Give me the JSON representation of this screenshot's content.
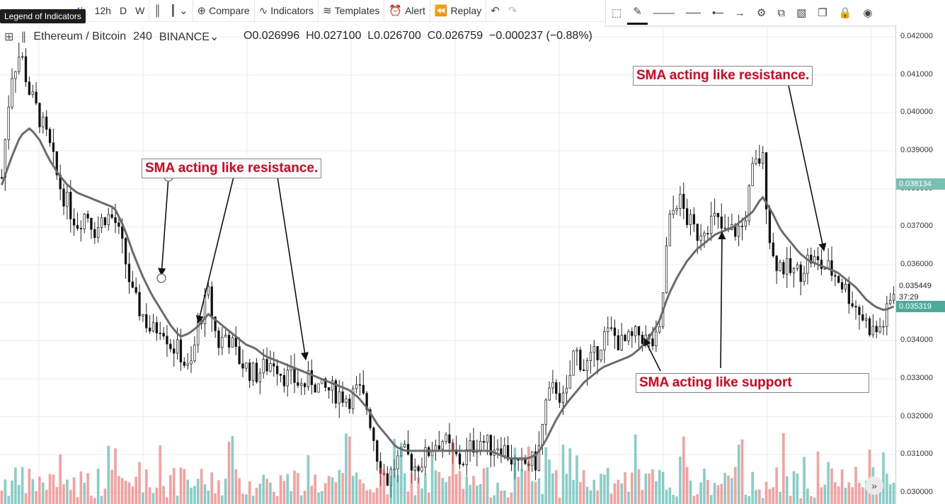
{
  "toolbar": {
    "tooltip": "Legend of Indicators",
    "intervals": [
      "4h",
      "12h",
      "D",
      "W"
    ],
    "compare": "Compare",
    "indicators": "Indicators",
    "templates": "Templates",
    "alert": "Alert",
    "replay": "Replay"
  },
  "legend": {
    "symbol": "Ethereum / Bitcoin",
    "interval": "240",
    "exchange": "BINANCE",
    "open_label": "O",
    "open": "0.026996",
    "high_label": "H",
    "high": "0.027100",
    "low_label": "L",
    "low": "0.026700",
    "close_label": "C",
    "close": "0.026759",
    "change": "−0.000237 (−0.88%)"
  },
  "annotations": {
    "a1": "SMA acting like resistance.",
    "a2": "SMA acting like resistance.",
    "a3": "SMA acting like support"
  },
  "colors": {
    "up": "#26a69a",
    "down": "#ef5350",
    "sma": "#6b6b6b",
    "annotation": "#e0001a",
    "current": "#4dab99"
  },
  "chart_data": {
    "type": "candlestick",
    "title": "Ethereum / Bitcoin",
    "interval": "240",
    "ylim": [
      0.0297,
      0.0423
    ],
    "y_ticks": [
      "0.042000",
      "0.041000",
      "0.040000",
      "0.039000",
      "0.038000",
      "0.037000",
      "0.036000",
      "0.035000",
      "0.034000",
      "0.033000",
      "0.032000",
      "0.031000",
      "0.030000"
    ],
    "price_labels": {
      "sma": "0.038134",
      "last": "0.035449",
      "countdown": "37:29",
      "current": "0.035319"
    },
    "price_close": [
      0.0383,
      0.041,
      0.0416,
      0.0405,
      0.0399,
      0.0392,
      0.0382,
      0.0376,
      0.0371,
      0.0374,
      0.0369,
      0.0373,
      0.0372,
      0.0363,
      0.0351,
      0.0347,
      0.0342,
      0.0345,
      0.0339,
      0.0337,
      0.0331,
      0.0345,
      0.0352,
      0.0339,
      0.0342,
      0.0336,
      0.0333,
      0.0331,
      0.0333,
      0.0335,
      0.0331,
      0.033,
      0.0328,
      0.033,
      0.0327,
      0.0327,
      0.0326,
      0.0325,
      0.0327,
      0.0322,
      0.031,
      0.0303,
      0.0308,
      0.031,
      0.0307,
      0.0309,
      0.0313,
      0.0314,
      0.031,
      0.0308,
      0.0312,
      0.0314,
      0.0312,
      0.0313,
      0.031,
      0.0306,
      0.0308,
      0.0308,
      0.0324,
      0.0328,
      0.0323,
      0.0338,
      0.0333,
      0.0335,
      0.0341,
      0.0342,
      0.0339,
      0.034,
      0.0342,
      0.0339,
      0.034,
      0.037,
      0.0378,
      0.0372,
      0.0368,
      0.0371,
      0.0372,
      0.0368,
      0.0369,
      0.037,
      0.0385,
      0.0389,
      0.0362,
      0.036,
      0.0358,
      0.0358,
      0.0362,
      0.036,
      0.0359,
      0.0357,
      0.0353,
      0.0349,
      0.0345,
      0.0342,
      0.0345,
      0.0353
    ],
    "sma": [
      0.0381,
      0.0388,
      0.0394,
      0.0396,
      0.0393,
      0.0388,
      0.0384,
      0.0381,
      0.0379,
      0.0378,
      0.0377,
      0.0376,
      0.0375,
      0.037,
      0.0363,
      0.0357,
      0.0352,
      0.0348,
      0.0344,
      0.0341,
      0.0342,
      0.0344,
      0.0347,
      0.0345,
      0.0343,
      0.0341,
      0.0339,
      0.0338,
      0.0336,
      0.0335,
      0.0334,
      0.0333,
      0.0332,
      0.0331,
      0.033,
      0.0329,
      0.0328,
      0.0327,
      0.0325,
      0.0322,
      0.0318,
      0.0315,
      0.0312,
      0.0311,
      0.0311,
      0.0311,
      0.0311,
      0.0311,
      0.0311,
      0.0311,
      0.0311,
      0.0311,
      0.0311,
      0.031,
      0.0309,
      0.0309,
      0.0309,
      0.031,
      0.0314,
      0.0319,
      0.0323,
      0.0326,
      0.0329,
      0.0331,
      0.0333,
      0.0334,
      0.0335,
      0.0336,
      0.0338,
      0.0341,
      0.0345,
      0.0352,
      0.0357,
      0.0361,
      0.0364,
      0.0366,
      0.0368,
      0.0369,
      0.037,
      0.0372,
      0.0374,
      0.0378,
      0.0374,
      0.0369,
      0.0366,
      0.0363,
      0.0361,
      0.036,
      0.0359,
      0.0358,
      0.0356,
      0.0354,
      0.0351,
      0.0349,
      0.0348,
      0.0349
    ]
  }
}
